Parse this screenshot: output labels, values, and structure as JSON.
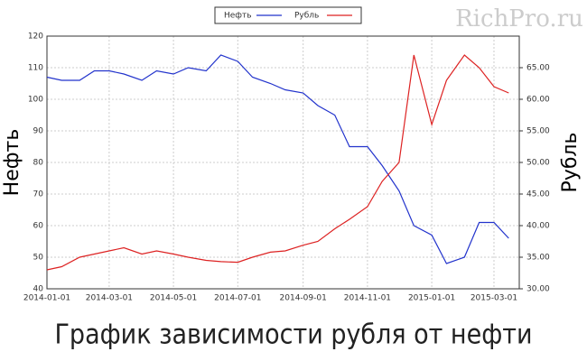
{
  "chart_data": {
    "type": "line",
    "title": "График зависимости рубля от нефти",
    "watermark": "RichPro.ru",
    "y_label": "Нефть",
    "y2_label": "Рубль",
    "x": [
      "2014-01-01",
      "2014-01-15",
      "2014-02-01",
      "2014-02-15",
      "2014-03-01",
      "2014-03-15",
      "2014-04-01",
      "2014-04-15",
      "2014-05-01",
      "2014-05-15",
      "2014-06-01",
      "2014-06-15",
      "2014-07-01",
      "2014-07-15",
      "2014-08-01",
      "2014-08-15",
      "2014-09-01",
      "2014-09-15",
      "2014-10-01",
      "2014-10-15",
      "2014-11-01",
      "2014-11-15",
      "2014-12-01",
      "2014-12-15",
      "2015-01-01",
      "2015-01-15",
      "2015-02-01",
      "2015-02-15",
      "2015-03-01",
      "2015-03-15"
    ],
    "series": [
      {
        "name": "Нефть",
        "color": "#2233cc",
        "values": [
          107,
          106,
          106,
          109,
          109,
          108,
          106,
          109,
          108,
          110,
          109,
          114,
          112,
          107,
          105,
          103,
          102,
          98,
          95,
          85,
          85,
          79,
          71,
          60,
          57,
          48,
          50,
          61,
          61,
          56
        ]
      },
      {
        "name": "Рубль",
        "color": "#dd2222",
        "axis": "y2",
        "values": [
          33.0,
          33.5,
          35.0,
          35.5,
          36.0,
          36.5,
          35.5,
          36.0,
          35.5,
          35.0,
          34.5,
          34.3,
          34.2,
          35.0,
          35.8,
          36.0,
          36.9,
          37.5,
          39.5,
          41.0,
          43.0,
          47.0,
          50.0,
          67.0,
          56.0,
          63.0,
          67.0,
          65.0,
          62.0,
          61.0
        ]
      }
    ],
    "xlim": [
      "2014-01-01",
      "2015-03-25"
    ],
    "xticks": [
      "2014-01-01",
      "2014-03-01",
      "2014-05-01",
      "2014-07-01",
      "2014-09-01",
      "2014-11-01",
      "2015-01-01",
      "2015-03-01"
    ],
    "ylim": [
      40,
      120
    ],
    "yticks": [
      40,
      50,
      60,
      70,
      80,
      90,
      100,
      110,
      120
    ],
    "y2lim": [
      30,
      70
    ],
    "y2ticks": [
      {
        "value": 30,
        "label": "30.00"
      },
      {
        "value": 35,
        "label": "35.00"
      },
      {
        "value": 40,
        "label": "40.00"
      },
      {
        "value": 45,
        "label": "45.00"
      },
      {
        "value": 50,
        "label": "50.00"
      },
      {
        "value": 55,
        "label": "55.00"
      },
      {
        "value": 60,
        "label": "60.00"
      },
      {
        "value": 65,
        "label": "65.00"
      }
    ],
    "grid": true,
    "legend": "top"
  }
}
